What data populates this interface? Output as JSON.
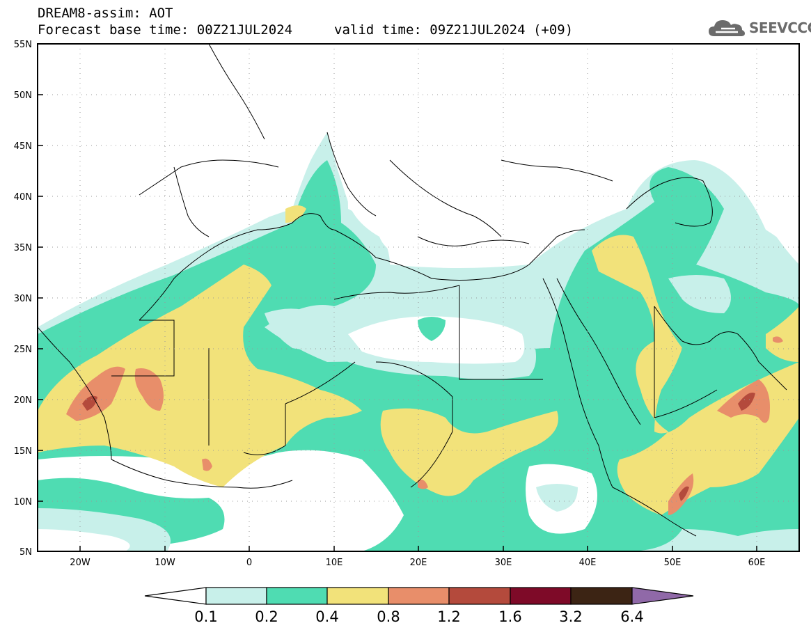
{
  "header": {
    "title": "DREAM8-assim: AOT",
    "base_time": "Forecast base time: 00Z21JUL2024",
    "valid_time": "valid time: 09Z21JUL2024 (+09)"
  },
  "logo": {
    "text": "SEEVCCC",
    "icon": "cloud-icon"
  },
  "map": {
    "lat_ticks": [
      "55N",
      "50N",
      "45N",
      "40N",
      "35N",
      "30N",
      "25N",
      "20N",
      "15N",
      "10N",
      "5N"
    ],
    "lon_ticks": [
      "20W",
      "10W",
      "0",
      "10E",
      "20E",
      "30E",
      "40E",
      "50E",
      "60E"
    ]
  },
  "colorbar": {
    "labels": [
      "0.1",
      "0.2",
      "0.4",
      "0.8",
      "1.2",
      "1.6",
      "3.2",
      "6.4"
    ],
    "colors": [
      "#ffffff",
      "#c8f0ea",
      "#4fdcb2",
      "#f2e27a",
      "#e88e6a",
      "#b44a3c",
      "#7e0a28",
      "#3c2414",
      "#9069a8"
    ]
  }
}
